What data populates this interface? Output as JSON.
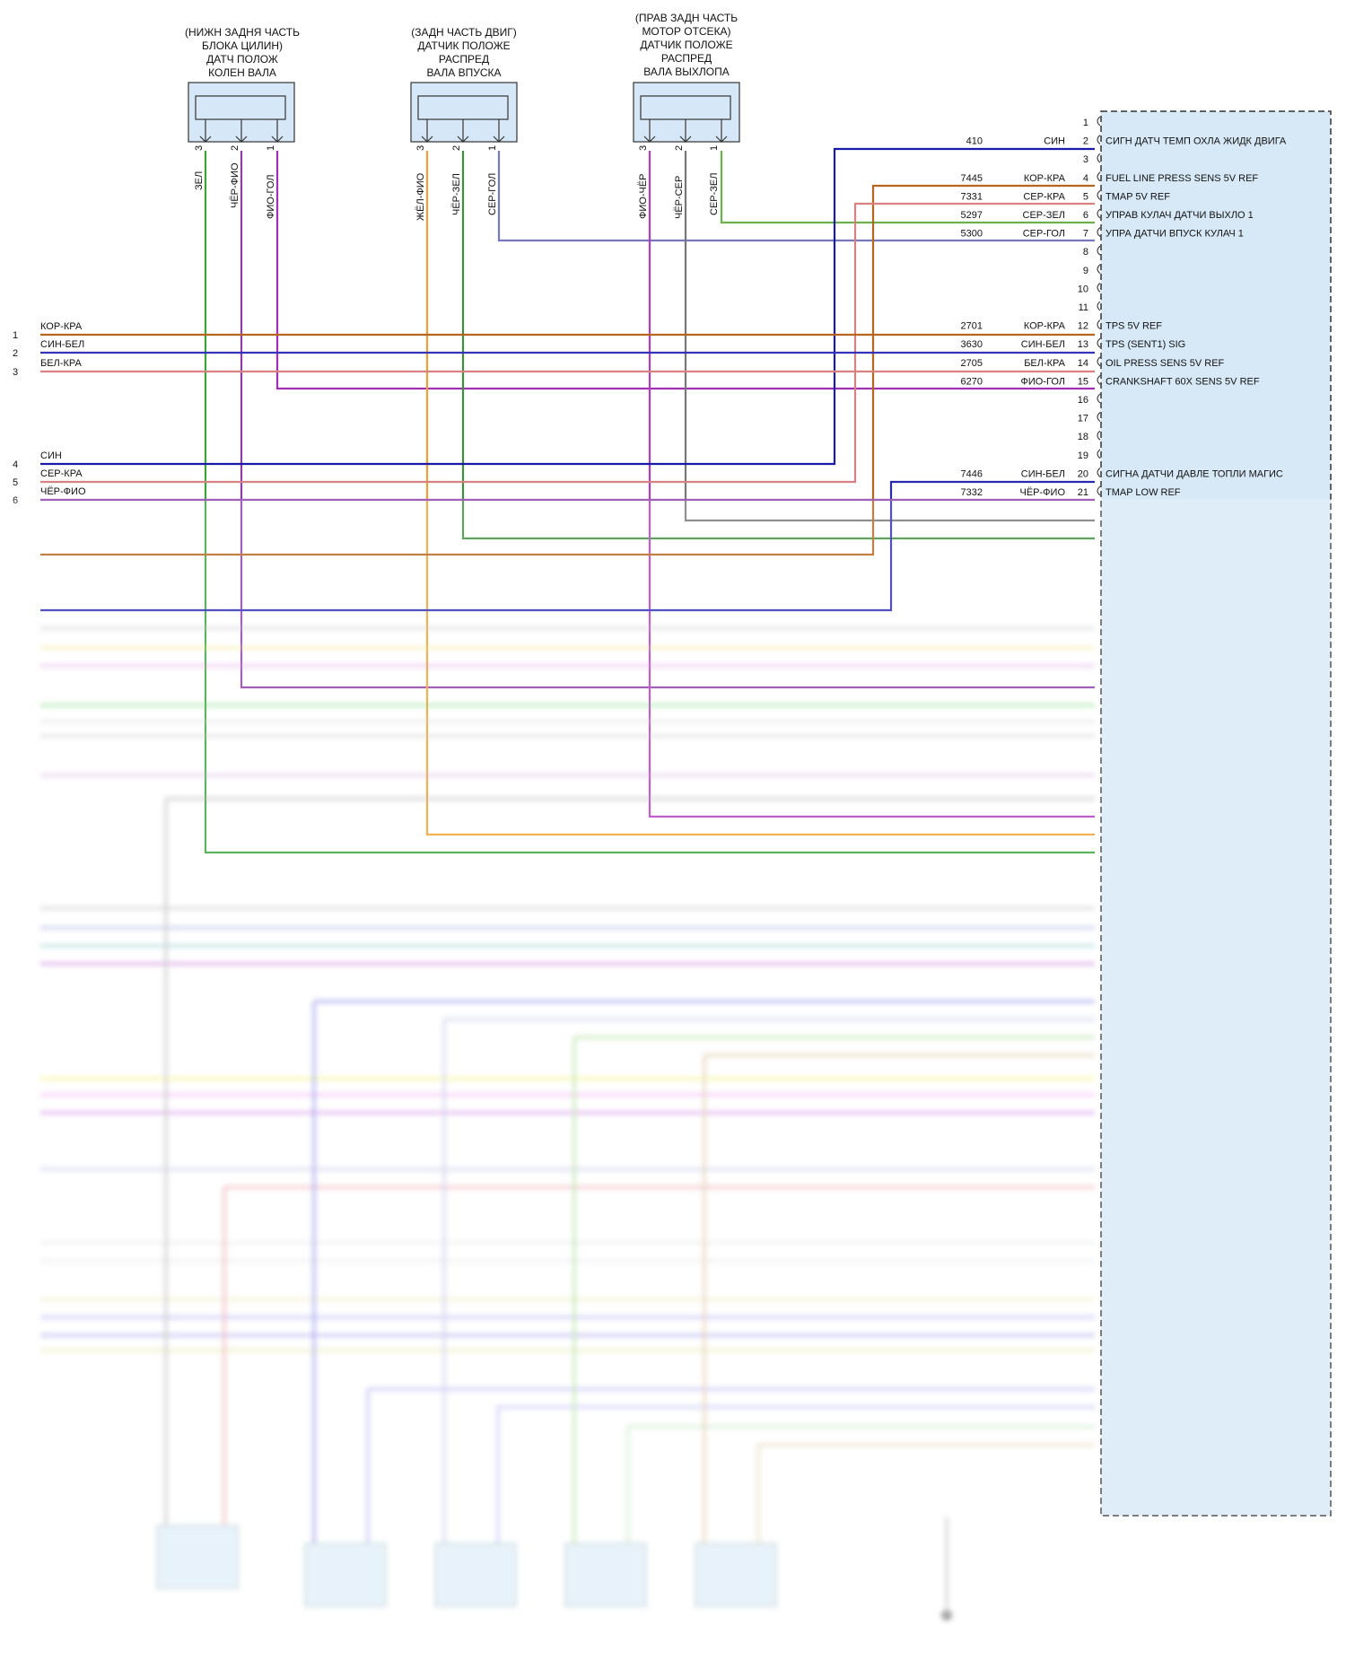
{
  "sensors": [
    {
      "id": "crank",
      "title": [
        "(НИЖН ЗАДНЯ ЧАСТЬ",
        "БЛОКА ЦИЛИН)",
        "ДАТЧ ПОЛОЖ",
        "КОЛЕН ВАЛА"
      ],
      "pins": [
        {
          "num": "3",
          "wire": "ЗЕЛ"
        },
        {
          "num": "2",
          "wire": "ЧЁР-ФИО"
        },
        {
          "num": "1",
          "wire": "ФИО-ГОЛ"
        }
      ]
    },
    {
      "id": "cam-intake",
      "title": [
        "(ЗАДН ЧАСТЬ ДВИГ)",
        "ДАТЧИК ПОЛОЖЕ",
        "РАСПРЕД",
        "ВАЛА ВПУСКА"
      ],
      "pins": [
        {
          "num": "3",
          "wire": "ЖЁЛ-ФИО"
        },
        {
          "num": "2",
          "wire": "ЧЁР-ЗЕЛ"
        },
        {
          "num": "1",
          "wire": "СЕР-ГОЛ"
        }
      ]
    },
    {
      "id": "cam-exhaust",
      "title": [
        "(ПРАВ ЗАДН ЧАСТЬ",
        "МОТОР ОТСЕКА)",
        "ДАТЧИК ПОЛОЖЕ",
        "РАСПРЕД",
        "ВАЛА ВЫХЛОПА"
      ],
      "pins": [
        {
          "num": "3",
          "wire": "ФИО-ЧЁР"
        },
        {
          "num": "2",
          "wire": "ЧЁР-СЕР"
        },
        {
          "num": "1",
          "wire": "СЕР-ЗЕЛ"
        }
      ]
    }
  ],
  "left_connector": [
    {
      "pin": "1",
      "wire": "КОР-КРА"
    },
    {
      "pin": "2",
      "wire": "СИН-БЕЛ"
    },
    {
      "pin": "3",
      "wire": "БЕЛ-КРА"
    },
    {
      "pin": "4",
      "wire": "СИН"
    },
    {
      "pin": "5",
      "wire": "СЕР-КРА"
    },
    {
      "pin": "6",
      "wire": "ЧЁР-ФИО"
    }
  ],
  "module_pins": [
    {
      "pin": "1",
      "circuit": "",
      "wire": "",
      "label": ""
    },
    {
      "pin": "2",
      "circuit": "410",
      "wire": "СИН",
      "label": "СИГН ДАТЧ ТЕМП ОХЛА ЖИДК ДВИГА"
    },
    {
      "pin": "3",
      "circuit": "",
      "wire": "",
      "label": ""
    },
    {
      "pin": "4",
      "circuit": "7445",
      "wire": "КОР-КРА",
      "label": "FUEL LINE PRESS SENS 5V REF"
    },
    {
      "pin": "5",
      "circuit": "7331",
      "wire": "СЕР-КРА",
      "label": "TMAP 5V REF"
    },
    {
      "pin": "6",
      "circuit": "5297",
      "wire": "СЕР-ЗЕЛ",
      "label": "УПРАВ КУЛАЧ ДАТЧИ ВЫХЛО 1"
    },
    {
      "pin": "7",
      "circuit": "5300",
      "wire": "СЕР-ГОЛ",
      "label": "УПРА ДАТЧИ ВПУСК КУЛАЧ 1"
    },
    {
      "pin": "8",
      "circuit": "",
      "wire": "",
      "label": ""
    },
    {
      "pin": "9",
      "circuit": "",
      "wire": "",
      "label": ""
    },
    {
      "pin": "10",
      "circuit": "",
      "wire": "",
      "label": ""
    },
    {
      "pin": "11",
      "circuit": "",
      "wire": "",
      "label": ""
    },
    {
      "pin": "12",
      "circuit": "2701",
      "wire": "КОР-КРА",
      "label": "TPS 5V REF"
    },
    {
      "pin": "13",
      "circuit": "3630",
      "wire": "СИН-БЕЛ",
      "label": "TPS (SENT1) SIG"
    },
    {
      "pin": "14",
      "circuit": "2705",
      "wire": "БЕЛ-КРА",
      "label": "OIL PRESS SENS 5V REF"
    },
    {
      "pin": "15",
      "circuit": "6270",
      "wire": "ФИО-ГОЛ",
      "label": "CRANKSHAFT 60X SENS 5V REF"
    },
    {
      "pin": "16",
      "circuit": "",
      "wire": "",
      "label": ""
    },
    {
      "pin": "17",
      "circuit": "",
      "wire": "",
      "label": ""
    },
    {
      "pin": "18",
      "circuit": "",
      "wire": "",
      "label": ""
    },
    {
      "pin": "19",
      "circuit": "",
      "wire": "",
      "label": ""
    },
    {
      "pin": "20",
      "circuit": "7446",
      "wire": "СИН-БЕЛ",
      "label": "СИГНА ДАТЧИ ДАВЛЕ ТОПЛИ МАГИС"
    },
    {
      "pin": "21",
      "circuit": "7332",
      "wire": "ЧЁР-ФИО",
      "label": "TMAP LOW REF"
    }
  ],
  "colors": {
    "green": "#3aa33a",
    "violet_black": "#8a3fa8",
    "violet_blue": "#a12fb5",
    "yellow": "#f0a030",
    "grey_blue": "#7777bb",
    "brown": "#b5651d",
    "blue": "#1a1aa8",
    "rose": "#d98080",
    "grey": "#888888",
    "module_fill": "#d7e9f7",
    "sensor_fill": "#d6e8f7"
  }
}
